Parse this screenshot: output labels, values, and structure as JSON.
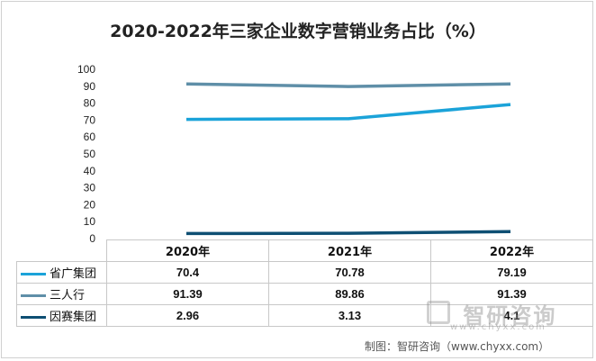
{
  "chart_data": {
    "type": "line",
    "title": "2020-2022年三家企业数字营销业务占比（%）",
    "categories": [
      "2020年",
      "2021年",
      "2022年"
    ],
    "ylim": [
      0,
      100
    ],
    "yticks": [
      0,
      10,
      20,
      30,
      40,
      50,
      60,
      70,
      80,
      90,
      100
    ],
    "grid": false,
    "legend": "data-table",
    "series": [
      {
        "name": "省广集团",
        "values": [
          70.4,
          70.78,
          79.19
        ],
        "color": "#1ba3d9",
        "labels": [
          "70.4",
          "70.78",
          "79.19"
        ]
      },
      {
        "name": "三人行",
        "values": [
          91.39,
          89.86,
          91.39
        ],
        "color": "#5f8fa8",
        "labels": [
          "91.39",
          "89.86",
          "91.39"
        ]
      },
      {
        "name": "因赛集团",
        "values": [
          2.96,
          3.13,
          4.1
        ],
        "color": "#0e4f73",
        "labels": [
          "2.96",
          "3.13",
          "4.1"
        ]
      }
    ]
  },
  "watermark": {
    "brand": "智研咨询",
    "url": "www.chyxx.com"
  },
  "source_note": "制图：智研咨询（www.chyxx.com）"
}
